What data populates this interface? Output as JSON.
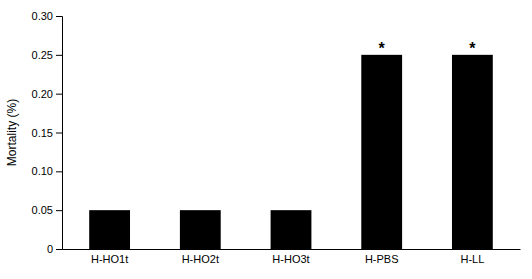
{
  "chart_data": {
    "type": "bar",
    "categories": [
      "H-HO1t",
      "H-HO2t",
      "H-HO3t",
      "H-PBS",
      "H-LL"
    ],
    "values": [
      0.05,
      0.05,
      0.05,
      0.25,
      0.25
    ],
    "color": "#000000",
    "ylabel": "Mortality (%)",
    "ylim": [
      0,
      0.3
    ],
    "yticks": [
      0,
      0.05,
      {
        "value": 0.1,
        "label": "0.10"
      },
      0.15,
      {
        "value": 0.2,
        "label": "0.20"
      },
      0.25,
      {
        "value": 0.3,
        "label": "0.30"
      }
    ],
    "annotations": [
      {
        "text": "*",
        "category": "H-PBS"
      },
      {
        "text": "*",
        "category": "H-LL"
      }
    ],
    "grid": false
  }
}
